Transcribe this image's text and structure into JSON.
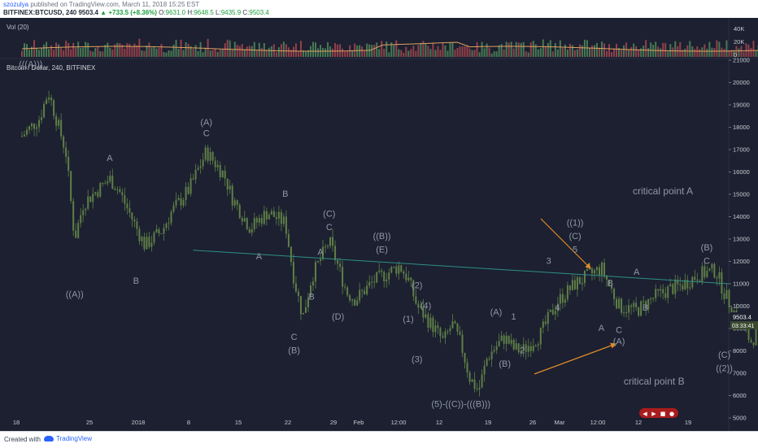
{
  "header": {
    "author": "szozulya",
    "published": "published on TradingView.com, March 11, 2018 15:25 EST",
    "symbol": "BITFINEX:BTCUSD, 240",
    "last": "9503.4",
    "change": "+733.5 (+8.36%)",
    "open_label": "O:",
    "open": "9631.0",
    "high_label": "H:",
    "high": "9648.5",
    "low_label": "L:",
    "low": "9435.9",
    "close_label": "C:",
    "close": "9503.4"
  },
  "volume": {
    "label": "Vol (20)",
    "ticks": [
      "40K",
      "20K",
      "0"
    ]
  },
  "main": {
    "title": "Bitcoin / Dollar, 240, BITFINEX",
    "price_label": "9503.4",
    "countdown_label": "03:33:41"
  },
  "footer": {
    "created_with": "Created with",
    "brand": "TradingView"
  },
  "colors": {
    "background": "#1c2030",
    "candles": "#5f7f47",
    "annotation": "#8f98a6",
    "trendline": "#2f8f86",
    "arrow": "#e08a2a",
    "price_label": "#3b4a2f"
  },
  "chart_data": {
    "type": "line",
    "title": "Bitcoin / Dollar, 240, BITFINEX",
    "y_unit": "USD",
    "ylim": [
      5000,
      21000
    ],
    "y_ticks": [
      5000,
      6000,
      7000,
      8000,
      9000,
      10000,
      11000,
      12000,
      13000,
      14000,
      15000,
      16000,
      17000,
      18000,
      19000,
      20000,
      21000
    ],
    "x_ticks": [
      "18",
      "25",
      "2018",
      "8",
      "15",
      "22",
      "29",
      "Feb",
      "12:00",
      "12",
      "19",
      "26",
      "Mar",
      "12:00",
      "12",
      "19"
    ],
    "series": [
      {
        "values": [
          {
            "x": "Dec 16",
            "y": 17600
          },
          {
            "x": "Dec 18",
            "y": 18400
          },
          {
            "x": "Dec 19",
            "y": 19600
          },
          {
            "x": "Dec 21",
            "y": 16900
          },
          {
            "x": "Dec 22",
            "y": 13000
          },
          {
            "x": "Dec 23",
            "y": 14600
          },
          {
            "x": "Dec 26",
            "y": 15700
          },
          {
            "x": "Dec 27",
            "y": 15200
          },
          {
            "x": "Dec 30",
            "y": 12700
          },
          {
            "x": "Jan 1",
            "y": 13400
          },
          {
            "x": "Jan 2",
            "y": 14200
          },
          {
            "x": "Jan 4",
            "y": 15200
          },
          {
            "x": "Jan 6",
            "y": 16900
          },
          {
            "x": "Jan 8",
            "y": 15900
          },
          {
            "x": "Jan 9",
            "y": 14800
          },
          {
            "x": "Jan 11",
            "y": 13500
          },
          {
            "x": "Jan 13",
            "y": 14200
          },
          {
            "x": "Jan 15",
            "y": 13700
          },
          {
            "x": "Jan 16",
            "y": 11200
          },
          {
            "x": "Jan 17",
            "y": 9500
          },
          {
            "x": "Jan 18",
            "y": 11300
          },
          {
            "x": "Jan 19",
            "y": 12100
          },
          {
            "x": "Jan 20",
            "y": 12900
          },
          {
            "x": "Jan 21",
            "y": 11800
          },
          {
            "x": "Jan 22",
            "y": 10600
          },
          {
            "x": "Jan 23",
            "y": 10300
          },
          {
            "x": "Jan 25",
            "y": 11100
          },
          {
            "x": "Jan 28",
            "y": 11800
          },
          {
            "x": "Jan 29",
            "y": 11200
          },
          {
            "x": "Jan 30",
            "y": 10000
          },
          {
            "x": "Feb 1",
            "y": 9000
          },
          {
            "x": "Feb 2",
            "y": 8400
          },
          {
            "x": "Feb 3",
            "y": 9200
          },
          {
            "x": "Feb 4",
            "y": 8300
          },
          {
            "x": "Feb 5",
            "y": 6800
          },
          {
            "x": "Feb 6",
            "y": 6200
          },
          {
            "x": "Feb 7",
            "y": 7700
          },
          {
            "x": "Feb 8",
            "y": 8200
          },
          {
            "x": "Feb 9",
            "y": 8600
          },
          {
            "x": "Feb 10",
            "y": 8100
          },
          {
            "x": "Feb 11",
            "y": 8000
          },
          {
            "x": "Feb 13",
            "y": 8700
          },
          {
            "x": "Feb 15",
            "y": 10200
          },
          {
            "x": "Feb 17",
            "y": 11000
          },
          {
            "x": "Feb 20",
            "y": 11700
          },
          {
            "x": "Feb 22",
            "y": 10000
          },
          {
            "x": "Feb 24",
            "y": 9800
          },
          {
            "x": "Feb 26",
            "y": 10400
          },
          {
            "x": "Feb 28",
            "y": 10800
          },
          {
            "x": "Mar 1",
            "y": 10900
          },
          {
            "x": "Mar 3",
            "y": 11400
          },
          {
            "x": "Mar 5",
            "y": 11600
          },
          {
            "x": "Mar 6",
            "y": 10600
          },
          {
            "x": "Mar 7",
            "y": 9800
          },
          {
            "x": "Mar 8",
            "y": 9200
          },
          {
            "x": "Mar 9",
            "y": 8400
          },
          {
            "x": "Mar 10",
            "y": 9000
          },
          {
            "x": "Mar 11",
            "y": 9500
          }
        ]
      }
    ]
  },
  "annotations": [
    {
      "label": "(((A)))",
      "x": "Dec 17",
      "y": 20700
    },
    {
      "label": "((A))",
      "x": "Dec 22",
      "y": 10400
    },
    {
      "label": "A",
      "x": "Dec 26",
      "y": 16500
    },
    {
      "label": "B",
      "x": "Dec 29",
      "y": 11000
    },
    {
      "label": "(A)",
      "x": "Jan 6",
      "y": 18100
    },
    {
      "label": "C",
      "x": "Jan 6",
      "y": 17600
    },
    {
      "label": "B",
      "x": "Jan 15",
      "y": 14900
    },
    {
      "label": "A",
      "x": "Jan 12",
      "y": 12100
    },
    {
      "label": "C",
      "x": "Jan 16",
      "y": 8500
    },
    {
      "label": "(B)",
      "x": "Jan 16",
      "y": 7900
    },
    {
      "label": "A",
      "x": "Jan 19",
      "y": 12300
    },
    {
      "label": "B",
      "x": "Jan 18",
      "y": 10300
    },
    {
      "label": "(C)",
      "x": "Jan 20",
      "y": 14000
    },
    {
      "label": "C",
      "x": "Jan 20",
      "y": 13400
    },
    {
      "label": "(D)",
      "x": "Jan 21",
      "y": 9400
    },
    {
      "label": "((B))",
      "x": "Jan 26",
      "y": 13000
    },
    {
      "label": "(E)",
      "x": "Jan 26",
      "y": 12400
    },
    {
      "label": "(2)",
      "x": "Jan 30",
      "y": 10800
    },
    {
      "label": "(1)",
      "x": "Jan 29",
      "y": 9300
    },
    {
      "label": "(4)",
      "x": "Jan 31",
      "y": 9900
    },
    {
      "label": "(3)",
      "x": "Jan 30",
      "y": 7500
    },
    {
      "label": "(5)-((C))-(((B)))",
      "x": "Feb 4",
      "y": 5500
    },
    {
      "label": "(A)",
      "x": "Feb 8",
      "y": 9600
    },
    {
      "label": "(B)",
      "x": "Feb 9",
      "y": 7300
    },
    {
      "label": "1",
      "x": "Feb 10",
      "y": 9400
    },
    {
      "label": "2",
      "x": "Feb 11",
      "y": 7900
    },
    {
      "label": "3",
      "x": "Feb 14",
      "y": 11900
    },
    {
      "label": "4",
      "x": "Feb 15",
      "y": 9800
    },
    {
      "label": "((1))",
      "x": "Feb 17",
      "y": 13600
    },
    {
      "label": "(C)",
      "x": "Feb 17",
      "y": 13000
    },
    {
      "label": "5",
      "x": "Feb 17",
      "y": 12400
    },
    {
      "label": "A",
      "x": "Feb 20",
      "y": 8900
    },
    {
      "label": "B",
      "x": "Feb 21",
      "y": 10900
    },
    {
      "label": "C",
      "x": "Feb 22",
      "y": 8800
    },
    {
      "label": "(A)",
      "x": "Feb 22",
      "y": 8300
    },
    {
      "label": "A",
      "x": "Feb 24",
      "y": 11400
    },
    {
      "label": "B",
      "x": "Feb 25",
      "y": 9800
    },
    {
      "label": "(B)",
      "x": "Mar 4",
      "y": 12500
    },
    {
      "label": "C",
      "x": "Mar 4",
      "y": 11900
    },
    {
      "label": "(C)",
      "x": "Mar 6",
      "y": 7700
    },
    {
      "label": "((2))",
      "x": "Mar 6",
      "y": 7100
    },
    {
      "label": "critical point A",
      "x": "Feb 27",
      "y": 15000
    },
    {
      "label": "critical point B",
      "x": "Feb 26",
      "y": 6500
    }
  ]
}
